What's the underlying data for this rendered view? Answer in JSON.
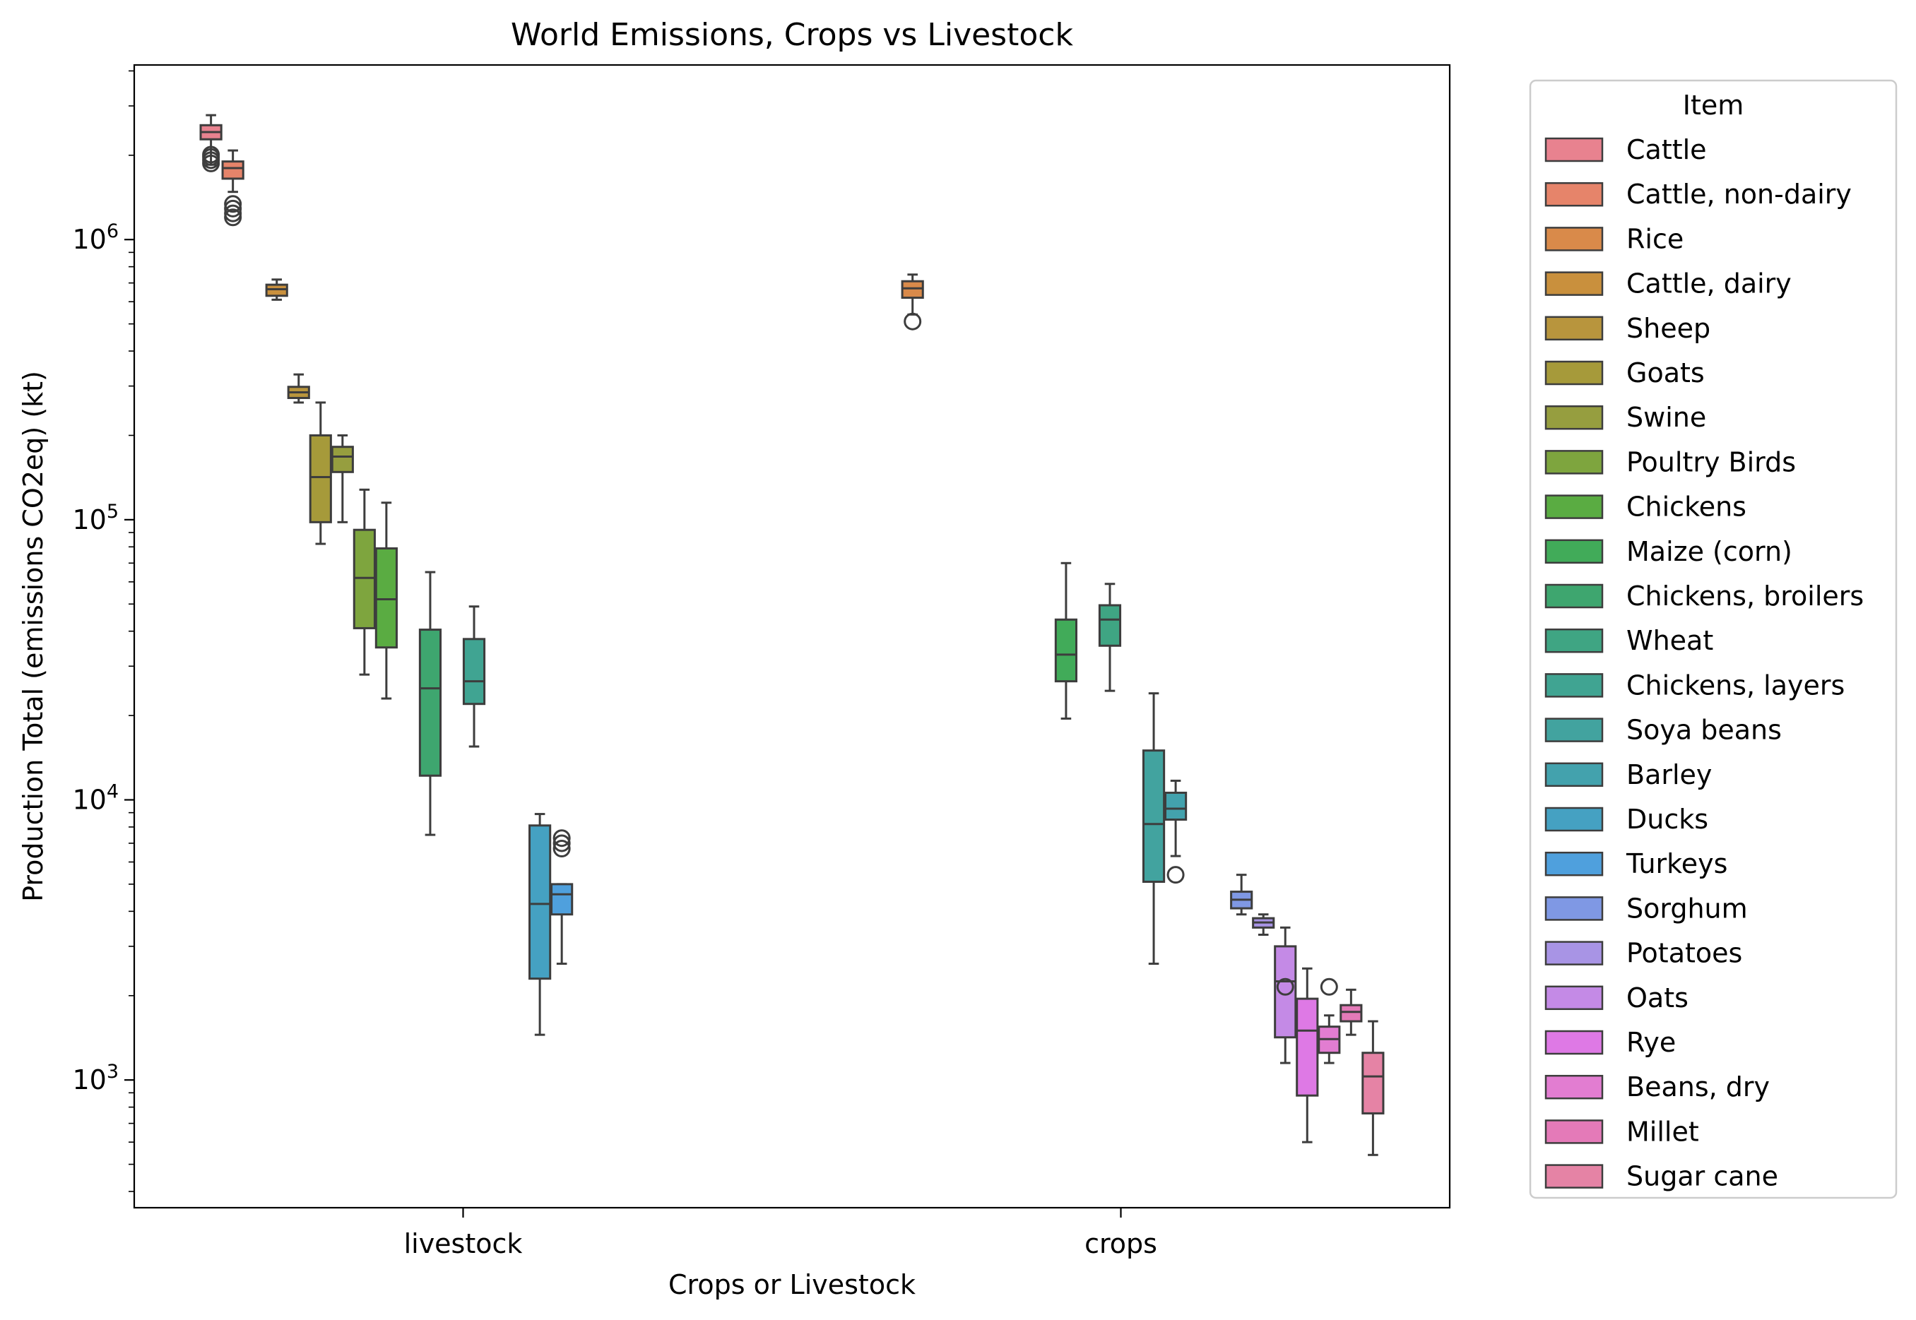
{
  "chart_data": {
    "type": "box",
    "title": "World Emissions, Crops vs Livestock",
    "xlabel": "Crops or Livestock",
    "ylabel": "Production Total (emissions CO2eq) (kt)",
    "yscale": "log",
    "ylim": [
      350,
      4200000
    ],
    "y_tick_labels": [
      {
        "value": 1000,
        "base": "10",
        "exp": "3"
      },
      {
        "value": 10000,
        "base": "10",
        "exp": "4"
      },
      {
        "value": 100000,
        "base": "10",
        "exp": "5"
      },
      {
        "value": 1000000,
        "base": "10",
        "exp": "6"
      }
    ],
    "categories": [
      "livestock",
      "crops"
    ],
    "legend": {
      "title": "Item",
      "placement": "outside right"
    },
    "series": [
      {
        "name": "Cattle",
        "color": "#e8828f",
        "category": "livestock",
        "whislo": 1850000,
        "q1": 2280000,
        "med": 2420000,
        "q3": 2560000,
        "whishi": 2780000,
        "fliers": [
          1870000,
          1920000,
          1970000,
          2010000
        ]
      },
      {
        "name": "Cattle, non-dairy",
        "color": "#e6846a",
        "category": "livestock",
        "whislo": 1480000,
        "q1": 1650000,
        "med": 1800000,
        "q3": 1900000,
        "whishi": 2080000,
        "fliers": [
          1200000,
          1240000,
          1290000,
          1340000
        ]
      },
      {
        "name": "Rice",
        "color": "#d98a4a",
        "category": "crops",
        "whislo": 540000,
        "q1": 620000,
        "med": 670000,
        "q3": 710000,
        "whishi": 750000,
        "fliers": [
          510000
        ]
      },
      {
        "name": "Cattle, dairy",
        "color": "#c9903d",
        "category": "livestock",
        "whislo": 610000,
        "q1": 630000,
        "med": 665000,
        "q3": 690000,
        "whishi": 720000,
        "fliers": []
      },
      {
        "name": "Sheep",
        "color": "#b8953d",
        "category": "livestock",
        "whislo": 262000,
        "q1": 272000,
        "med": 285000,
        "q3": 298000,
        "whishi": 330000,
        "fliers": []
      },
      {
        "name": "Goats",
        "color": "#a69a3a",
        "category": "livestock",
        "whislo": 82000,
        "q1": 98000,
        "med": 142000,
        "q3": 200000,
        "whishi": 262000,
        "fliers": []
      },
      {
        "name": "Swine",
        "color": "#969e3f",
        "category": "livestock",
        "whislo": 98000,
        "q1": 148000,
        "med": 168000,
        "q3": 182000,
        "whishi": 200000,
        "fliers": []
      },
      {
        "name": "Poultry Birds",
        "color": "#7ea53e",
        "category": "livestock",
        "whislo": 28000,
        "q1": 41000,
        "med": 62000,
        "q3": 92000,
        "whishi": 128000,
        "fliers": []
      },
      {
        "name": "Chickens",
        "color": "#5aac42",
        "category": "livestock",
        "whislo": 23000,
        "q1": 35000,
        "med": 52000,
        "q3": 79000,
        "whishi": 115000,
        "fliers": []
      },
      {
        "name": "Maize (corn)",
        "color": "#41ab59",
        "category": "crops",
        "whislo": 19500,
        "q1": 26500,
        "med": 33000,
        "q3": 44000,
        "whishi": 70000,
        "fliers": []
      },
      {
        "name": "Chickens, broilers",
        "color": "#3ea66f",
        "category": "livestock",
        "whislo": 7500,
        "q1": 12200,
        "med": 25000,
        "q3": 40500,
        "whishi": 65000,
        "fliers": []
      },
      {
        "name": "Wheat",
        "color": "#3fa583",
        "category": "crops",
        "whislo": 24500,
        "q1": 35500,
        "med": 44000,
        "q3": 49500,
        "whishi": 59000,
        "fliers": []
      },
      {
        "name": "Chickens, layers",
        "color": "#40a492",
        "category": "livestock",
        "whislo": 15500,
        "q1": 22000,
        "med": 26500,
        "q3": 37500,
        "whishi": 49000,
        "fliers": []
      },
      {
        "name": "Soya beans",
        "color": "#42a39f",
        "category": "crops",
        "whislo": 2600,
        "q1": 5100,
        "med": 8200,
        "q3": 15000,
        "whishi": 24000,
        "fliers": []
      },
      {
        "name": "Barley",
        "color": "#43a2ad",
        "category": "crops",
        "whislo": 6300,
        "q1": 8500,
        "med": 9300,
        "q3": 10600,
        "whishi": 11700,
        "fliers": [
          5400
        ]
      },
      {
        "name": "Ducks",
        "color": "#45a1c2",
        "category": "livestock",
        "whislo": 1450,
        "q1": 2300,
        "med": 4250,
        "q3": 8100,
        "whishi": 8900,
        "fliers": []
      },
      {
        "name": "Turkeys",
        "color": "#4fa0dd",
        "category": "livestock",
        "whislo": 2600,
        "q1": 3900,
        "med": 4600,
        "q3": 5000,
        "whishi": 5000,
        "fliers": [
          6700,
          7000,
          7300
        ]
      },
      {
        "name": "Sorghum",
        "color": "#7f98e4",
        "category": "crops",
        "whislo": 3900,
        "q1": 4100,
        "med": 4400,
        "q3": 4700,
        "whishi": 5400,
        "fliers": []
      },
      {
        "name": "Potatoes",
        "color": "#a894e5",
        "category": "crops",
        "whislo": 3300,
        "q1": 3500,
        "med": 3650,
        "q3": 3780,
        "whishi": 3900,
        "fliers": []
      },
      {
        "name": "Oats",
        "color": "#c48ae6",
        "category": "crops",
        "whislo": 1150,
        "q1": 1420,
        "med": 2250,
        "q3": 3000,
        "whishi": 3500,
        "fliers": [
          2150
        ]
      },
      {
        "name": "Rye",
        "color": "#de79e5",
        "category": "crops",
        "whislo": 600,
        "q1": 880,
        "med": 1500,
        "q3": 1950,
        "whishi": 2500,
        "fliers": []
      },
      {
        "name": "Beans, dry",
        "color": "#e27dd1",
        "category": "crops",
        "whislo": 1150,
        "q1": 1250,
        "med": 1400,
        "q3": 1550,
        "whishi": 1700,
        "fliers": [
          2150
        ]
      },
      {
        "name": "Millet",
        "color": "#e47ab8",
        "category": "crops",
        "whislo": 1450,
        "q1": 1620,
        "med": 1750,
        "q3": 1850,
        "whishi": 2100,
        "fliers": []
      },
      {
        "name": "Sugar cane",
        "color": "#e583a5",
        "category": "crops",
        "whislo": 540,
        "q1": 760,
        "med": 1030,
        "q3": 1250,
        "whishi": 1620,
        "fliers": []
      }
    ]
  }
}
